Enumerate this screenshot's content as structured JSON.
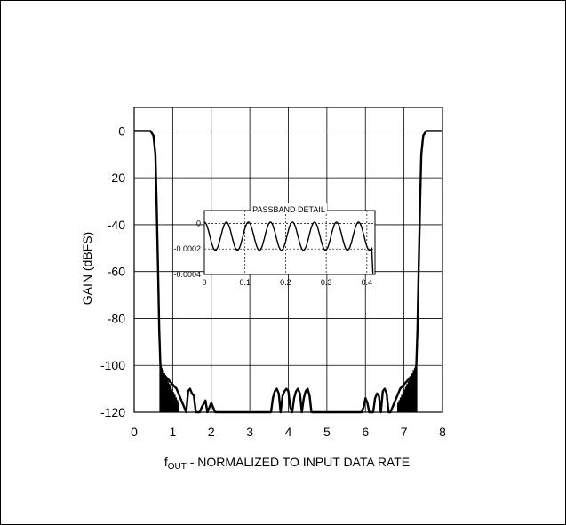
{
  "chart_data": [
    {
      "type": "line",
      "title": "",
      "xlabel_prefix": "f",
      "xlabel_sub": "OUT",
      "xlabel_rest": " - NORMALIZED TO INPUT DATA RATE",
      "ylabel": "GAIN (dBFS)",
      "xlim": [
        0,
        8
      ],
      "ylim": [
        -120,
        10
      ],
      "x_ticks": [
        "0",
        "1",
        "2",
        "3",
        "4",
        "5",
        "6",
        "7",
        "8"
      ],
      "y_ticks": [
        "0",
        "-20",
        "-40",
        "-60",
        "-80",
        "-100",
        "-120"
      ],
      "grid": true,
      "series": [
        {
          "x": [
            0,
            0.25,
            0.42,
            0.5,
            0.55,
            0.58,
            0.62,
            0.65,
            0.68,
            0.72,
            1.1,
            1.35,
            1.4,
            1.45,
            1.5,
            1.55,
            1.6,
            1.7,
            1.75,
            1.85,
            1.9,
            1.95,
            2.0,
            2.1,
            3.55,
            3.6,
            3.65,
            3.7,
            3.75,
            3.8,
            3.85,
            3.9,
            3.95,
            4.0,
            4.05,
            4.1,
            4.15,
            4.2,
            4.25,
            4.3,
            4.35,
            4.4,
            4.45,
            4.5,
            4.55,
            4.6,
            5.9,
            5.95,
            6.0,
            6.05,
            6.1,
            6.2,
            6.25,
            6.3,
            6.35,
            6.4,
            6.45,
            6.5,
            6.55,
            6.6,
            6.65,
            6.9,
            7.28,
            7.32,
            7.35,
            7.38,
            7.42,
            7.45,
            7.5,
            7.58,
            7.75,
            8.0
          ],
          "y": [
            0,
            0,
            0,
            -2,
            -10,
            -30,
            -60,
            -85,
            -100,
            -103,
            -110,
            -120,
            -111,
            -110,
            -112,
            -113,
            -120,
            -120,
            -118,
            -115,
            -120,
            -118,
            -116,
            -120,
            -120,
            -114,
            -111,
            -110,
            -112,
            -120,
            -113,
            -111,
            -110,
            -111,
            -118,
            -120,
            -114,
            -111,
            -110,
            -112,
            -120,
            -114,
            -111,
            -110,
            -113,
            -120,
            -120,
            -118,
            -114,
            -116,
            -120,
            -120,
            -114,
            -112,
            -113,
            -120,
            -111,
            -110,
            -112,
            -120,
            -120,
            -110,
            -103,
            -100,
            -85,
            -60,
            -30,
            -10,
            -2,
            0,
            0,
            0
          ]
        }
      ],
      "stopband_fill": [
        {
          "x_range": [
            0.68,
            1.15
          ],
          "y_top": -100
        },
        {
          "x_range": [
            6.85,
            7.32
          ],
          "y_top": -100
        }
      ]
    },
    {
      "type": "line",
      "title": "PASSBAND DETAIL",
      "xlim": [
        0,
        0.42
      ],
      "ylim": [
        -0.0004,
        0.0001
      ],
      "x_ticks": [
        "0",
        "0.1",
        "0.2",
        "0.3",
        "0.4"
      ],
      "y_ticks": [
        "0",
        "-0.0002",
        "-0.0004"
      ],
      "grid": true,
      "ripple": {
        "center": -0.0001,
        "amplitude": 0.00011,
        "cycles": 7.6,
        "x_end": 0.412,
        "final_drop_y": -0.0004
      }
    }
  ]
}
